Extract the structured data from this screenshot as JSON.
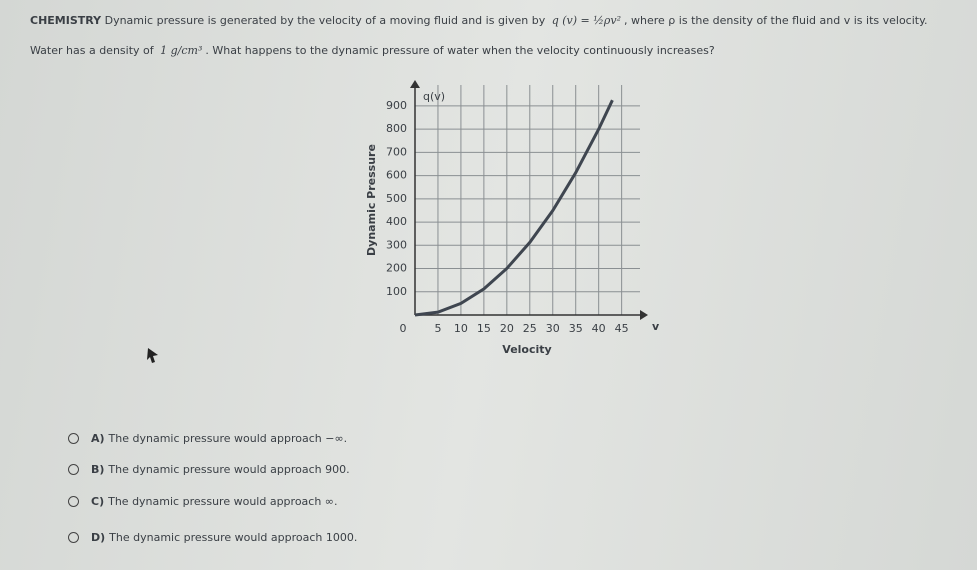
{
  "question": {
    "subject": "CHEMISTRY",
    "line1_before": "Dynamic pressure is generated by the velocity of a moving fluid and is given by",
    "formula": "q (v) = ½ρv²",
    "line1_after": ", where ρ is the density of the fluid and v is its velocity.",
    "line2_before": "Water has a density of",
    "density": "1 g/cm³",
    "line2_after": ". What happens to the dynamic pressure of water when the velocity continuously increases?"
  },
  "chart_data": {
    "type": "line",
    "y_axis_label": "q(v)",
    "x_axis_label": "v",
    "y_title": "Dynamic Pressure",
    "x_title": "Velocity",
    "x": [
      0,
      5,
      10,
      15,
      20,
      25,
      30,
      35,
      40,
      43
    ],
    "values": [
      0,
      12.5,
      50,
      112.5,
      200,
      312.5,
      450,
      612.5,
      800,
      924.5
    ],
    "color": "#3f4650",
    "xlim": [
      0,
      49
    ],
    "ylim": [
      0,
      990
    ],
    "xticks": [
      0,
      5,
      10,
      15,
      20,
      25,
      30,
      35,
      40,
      45
    ],
    "yticks": [
      100,
      200,
      300,
      400,
      500,
      600,
      700,
      800,
      900
    ],
    "grid": true
  },
  "options": [
    {
      "letter": "A)",
      "text": "The dynamic pressure would approach −∞."
    },
    {
      "letter": "B)",
      "text": "The dynamic pressure would approach 900."
    },
    {
      "letter": "C)",
      "text": "The dynamic pressure would approach ∞."
    },
    {
      "letter": "D)",
      "text": "The dynamic pressure would approach 1000."
    }
  ]
}
